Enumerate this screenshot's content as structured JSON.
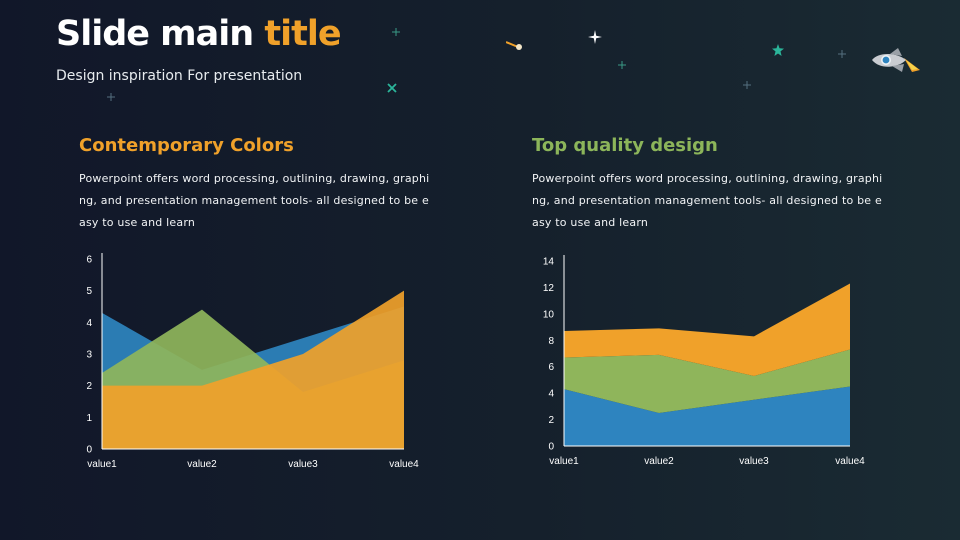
{
  "slide": {
    "title_main": "Slide main ",
    "title_accent": "title",
    "subtitle": "Design inspiration For presentation"
  },
  "left": {
    "heading": "Contemporary  Colors",
    "description": "Powerpoint offers word processing, outlining, drawing, graphing, and presentation management tools- all designed to be easy to use and learn"
  },
  "right": {
    "heading": "Top quality design",
    "description": "Powerpoint offers word processing, outlining, drawing, graphing, and presentation management tools- all designed to be easy to use and learn"
  },
  "colors": {
    "blue": "#2e84bf",
    "green": "#8fb55b",
    "orange": "#f0a12a",
    "accent_title": "#f0a12a"
  },
  "decorations": [
    "rocket-icon",
    "comet-icon",
    "star-icon"
  ],
  "chart_data": [
    {
      "type": "area",
      "stacked": false,
      "categories": [
        "value1",
        "value2",
        "value3",
        "value4"
      ],
      "series": [
        {
          "values": [
            4.3,
            2.5,
            3.5,
            4.5
          ],
          "color": "#2e84bf"
        },
        {
          "values": [
            2.4,
            4.4,
            1.8,
            2.8
          ],
          "color": "#8fb55b"
        },
        {
          "values": [
            2.0,
            2.0,
            3.0,
            5.0
          ],
          "color": "#f0a12a"
        }
      ],
      "ylim": [
        0,
        6
      ],
      "yticks": [
        0,
        1,
        2,
        3,
        4,
        5,
        6
      ],
      "grid": false
    },
    {
      "type": "area",
      "stacked": true,
      "categories": [
        "value1",
        "value2",
        "value3",
        "value4"
      ],
      "series": [
        {
          "values": [
            4.3,
            2.5,
            3.5,
            4.5
          ],
          "color": "#2e84bf"
        },
        {
          "values": [
            2.4,
            4.4,
            1.8,
            2.8
          ],
          "color": "#8fb55b"
        },
        {
          "values": [
            2.0,
            2.0,
            3.0,
            5.0
          ],
          "color": "#f0a12a"
        }
      ],
      "ylim": [
        0,
        14
      ],
      "yticks": [
        0,
        2,
        4,
        6,
        8,
        10,
        12,
        14
      ],
      "grid": false
    }
  ]
}
